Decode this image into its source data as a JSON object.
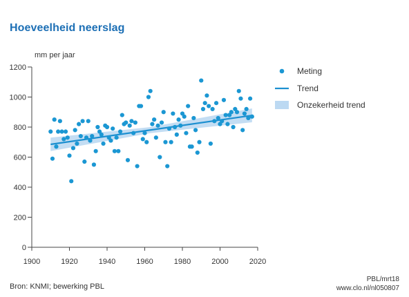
{
  "title": "Hoeveelheid neerslag",
  "footer": {
    "source": "Bron: KNMI; bewerking PBL",
    "code": "PBL/mrt18",
    "url": "www.clo.nl/nl050807"
  },
  "colors": {
    "title": "#1c6fb5",
    "points": "#1b97d3",
    "trend": "#1c8fd0",
    "band": "#bcd9f2",
    "axis": "#444444"
  },
  "chart_data": {
    "type": "scatter",
    "title": "Hoeveelheid neerslag",
    "ylabel": "mm per jaar",
    "xlabel": "",
    "xlim": [
      1900,
      2020
    ],
    "ylim": [
      0,
      1200
    ],
    "xticks": [
      1900,
      1920,
      1940,
      1960,
      1980,
      2000,
      2020
    ],
    "yticks": [
      0,
      200,
      400,
      600,
      800,
      1000,
      1200
    ],
    "grid": false,
    "legend": {
      "position": "right",
      "entries": [
        {
          "label": "Meting",
          "kind": "point"
        },
        {
          "label": "Trend",
          "kind": "line"
        },
        {
          "label": "Onzekerheid trend",
          "kind": "band"
        }
      ]
    },
    "series": [
      {
        "name": "Meting",
        "x": [
          1910,
          1911,
          1912,
          1913,
          1914,
          1915,
          1916,
          1917,
          1918,
          1919,
          1920,
          1921,
          1922,
          1923,
          1924,
          1925,
          1926,
          1927,
          1928,
          1929,
          1930,
          1931,
          1932,
          1933,
          1934,
          1935,
          1936,
          1937,
          1938,
          1939,
          1940,
          1941,
          1942,
          1943,
          1944,
          1945,
          1946,
          1947,
          1948,
          1949,
          1950,
          1951,
          1952,
          1953,
          1954,
          1955,
          1956,
          1957,
          1958,
          1959,
          1960,
          1961,
          1962,
          1963,
          1964,
          1965,
          1966,
          1967,
          1968,
          1969,
          1970,
          1971,
          1972,
          1973,
          1974,
          1975,
          1976,
          1977,
          1978,
          1979,
          1980,
          1981,
          1982,
          1983,
          1984,
          1985,
          1986,
          1987,
          1988,
          1989,
          1990,
          1991,
          1992,
          1993,
          1994,
          1995,
          1996,
          1997,
          1998,
          1999,
          2000,
          2001,
          2002,
          2003,
          2004,
          2005,
          2006,
          2007,
          2008,
          2009,
          2010,
          2011,
          2012,
          2013,
          2014,
          2015,
          2016,
          2017
        ],
        "y": [
          770,
          590,
          850,
          670,
          770,
          840,
          770,
          720,
          770,
          730,
          610,
          440,
          660,
          780,
          690,
          820,
          740,
          840,
          570,
          730,
          840,
          710,
          740,
          550,
          640,
          800,
          770,
          750,
          690,
          810,
          800,
          730,
          710,
          790,
          640,
          730,
          640,
          770,
          880,
          820,
          830,
          580,
          810,
          840,
          760,
          830,
          540,
          940,
          940,
          720,
          760,
          700,
          1000,
          1040,
          820,
          850,
          730,
          810,
          600,
          830,
          900,
          700,
          540,
          790,
          700,
          890,
          800,
          750,
          850,
          810,
          890,
          870,
          760,
          940,
          670,
          670,
          860,
          780,
          630,
          700,
          1110,
          920,
          960,
          1010,
          940,
          690,
          920,
          840,
          960,
          860,
          820,
          840,
          980,
          880,
          820,
          880,
          900,
          800,
          920,
          900,
          1040,
          990,
          780,
          890,
          920,
          860,
          990,
          870
        ]
      },
      {
        "name": "Trend",
        "x": [
          1910,
          2017
        ],
        "y": [
          685,
          878
        ]
      },
      {
        "name": "Onzekerheid trend",
        "x": [
          1910,
          1963,
          2017
        ],
        "lower": [
          640,
          760,
          832
        ],
        "upper": [
          730,
          800,
          924
        ]
      }
    ]
  }
}
